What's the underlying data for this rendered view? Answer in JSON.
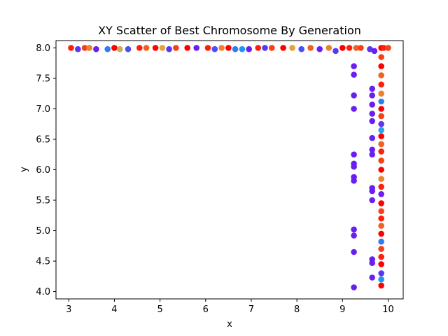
{
  "chart_data": {
    "type": "scatter",
    "title": "XY Scatter of Best Chromosome By Generation",
    "xlabel": "x",
    "ylabel": "y",
    "xlim": [
      2.72,
      10.33
    ],
    "ylim": [
      3.88,
      8.12
    ],
    "xticks": [
      3,
      4,
      5,
      6,
      7,
      8,
      9,
      10
    ],
    "yticks": [
      4.0,
      4.5,
      5.0,
      5.5,
      6.0,
      6.5,
      7.0,
      7.5,
      8.0
    ],
    "grid": false,
    "legend": "none",
    "colormap": [
      "#6a1ff2",
      "#1e96f0",
      "#4ad7d0",
      "#e5a23a",
      "#ff0000"
    ],
    "series": [
      {
        "points": [
          [
            3.05,
            8.0,
            0.95
          ],
          [
            3.2,
            7.98,
            0.05
          ],
          [
            3.35,
            8.0,
            0.9
          ],
          [
            3.45,
            8.0,
            0.8
          ],
          [
            3.6,
            7.98,
            0.0
          ],
          [
            3.85,
            7.98,
            0.2
          ],
          [
            4.0,
            8.0,
            1.0
          ],
          [
            4.12,
            7.98,
            0.7
          ],
          [
            4.3,
            7.98,
            0.1
          ],
          [
            4.55,
            8.0,
            0.95
          ],
          [
            4.7,
            8.0,
            0.85
          ],
          [
            4.9,
            8.0,
            1.0
          ],
          [
            5.05,
            8.0,
            0.75
          ],
          [
            5.2,
            7.98,
            0.05
          ],
          [
            5.35,
            8.0,
            0.9
          ],
          [
            5.6,
            8.0,
            1.0
          ],
          [
            5.8,
            8.0,
            0.0
          ],
          [
            6.05,
            8.0,
            0.95
          ],
          [
            6.2,
            7.98,
            0.1
          ],
          [
            6.35,
            8.0,
            0.8
          ],
          [
            6.5,
            8.0,
            1.0
          ],
          [
            6.65,
            7.98,
            0.2
          ],
          [
            6.8,
            7.98,
            0.25
          ],
          [
            6.95,
            7.98,
            0.0
          ],
          [
            7.15,
            8.0,
            0.95
          ],
          [
            7.3,
            8.0,
            0.05
          ],
          [
            7.45,
            8.0,
            0.9
          ],
          [
            7.7,
            8.0,
            1.0
          ],
          [
            7.9,
            8.0,
            0.75
          ],
          [
            8.1,
            7.98,
            0.1
          ],
          [
            8.3,
            8.0,
            0.85
          ],
          [
            8.5,
            7.98,
            0.0
          ],
          [
            8.7,
            8.0,
            0.8
          ],
          [
            8.85,
            7.95,
            0.05
          ],
          [
            9.0,
            8.0,
            1.0
          ],
          [
            9.15,
            8.0,
            0.95
          ],
          [
            9.3,
            8.0,
            0.85
          ],
          [
            9.4,
            8.0,
            0.9
          ],
          [
            9.6,
            7.98,
            0.05
          ],
          [
            9.7,
            7.95,
            0.0
          ],
          [
            9.25,
            7.7,
            0.0
          ],
          [
            9.25,
            7.56,
            0.0
          ],
          [
            9.25,
            7.22,
            0.0
          ],
          [
            9.25,
            7.0,
            0.0
          ],
          [
            9.25,
            6.25,
            0.0
          ],
          [
            9.25,
            6.1,
            0.0
          ],
          [
            9.25,
            6.05,
            0.0
          ],
          [
            9.25,
            5.88,
            0.0
          ],
          [
            9.25,
            5.82,
            0.0
          ],
          [
            9.25,
            5.02,
            0.0
          ],
          [
            9.25,
            4.92,
            0.0
          ],
          [
            9.25,
            4.65,
            0.0
          ],
          [
            9.25,
            4.07,
            0.0
          ],
          [
            9.65,
            7.33,
            0.0
          ],
          [
            9.65,
            7.22,
            0.0
          ],
          [
            9.65,
            7.07,
            0.0
          ],
          [
            9.65,
            6.92,
            0.0
          ],
          [
            9.65,
            6.8,
            0.0
          ],
          [
            9.65,
            6.52,
            0.0
          ],
          [
            9.65,
            6.33,
            0.0
          ],
          [
            9.65,
            6.25,
            0.0
          ],
          [
            9.65,
            5.7,
            0.0
          ],
          [
            9.65,
            5.65,
            0.0
          ],
          [
            9.65,
            5.5,
            0.0
          ],
          [
            9.65,
            4.53,
            0.0
          ],
          [
            9.65,
            4.47,
            0.0
          ],
          [
            9.65,
            4.23,
            0.0
          ],
          [
            9.85,
            8.0,
            1.0
          ],
          [
            9.9,
            8.0,
            0.95
          ],
          [
            10.0,
            8.0,
            0.9
          ],
          [
            9.85,
            7.85,
            0.9
          ],
          [
            9.85,
            7.7,
            1.0
          ],
          [
            9.85,
            7.55,
            0.85
          ],
          [
            9.85,
            7.4,
            0.95
          ],
          [
            9.85,
            7.25,
            0.8
          ],
          [
            9.85,
            7.12,
            0.2
          ],
          [
            9.85,
            7.0,
            1.0
          ],
          [
            9.85,
            6.88,
            0.9
          ],
          [
            9.85,
            6.75,
            0.05
          ],
          [
            9.85,
            6.65,
            0.3
          ],
          [
            9.85,
            6.55,
            1.0
          ],
          [
            9.85,
            6.42,
            0.85
          ],
          [
            9.85,
            6.3,
            0.95
          ],
          [
            9.85,
            6.15,
            0.9
          ],
          [
            9.85,
            6.0,
            1.0
          ],
          [
            9.85,
            5.85,
            0.8
          ],
          [
            9.85,
            5.72,
            0.95
          ],
          [
            9.85,
            5.6,
            0.0
          ],
          [
            9.85,
            5.45,
            1.0
          ],
          [
            9.85,
            5.32,
            0.9
          ],
          [
            9.85,
            5.2,
            0.95
          ],
          [
            9.85,
            5.08,
            0.85
          ],
          [
            9.85,
            4.95,
            1.0
          ],
          [
            9.85,
            4.82,
            0.2
          ],
          [
            9.85,
            4.7,
            0.9
          ],
          [
            9.85,
            4.57,
            0.95
          ],
          [
            9.85,
            4.45,
            1.0
          ],
          [
            9.85,
            4.3,
            0.05
          ],
          [
            9.85,
            4.2,
            0.25
          ],
          [
            9.85,
            4.1,
            1.0
          ]
        ]
      }
    ]
  }
}
